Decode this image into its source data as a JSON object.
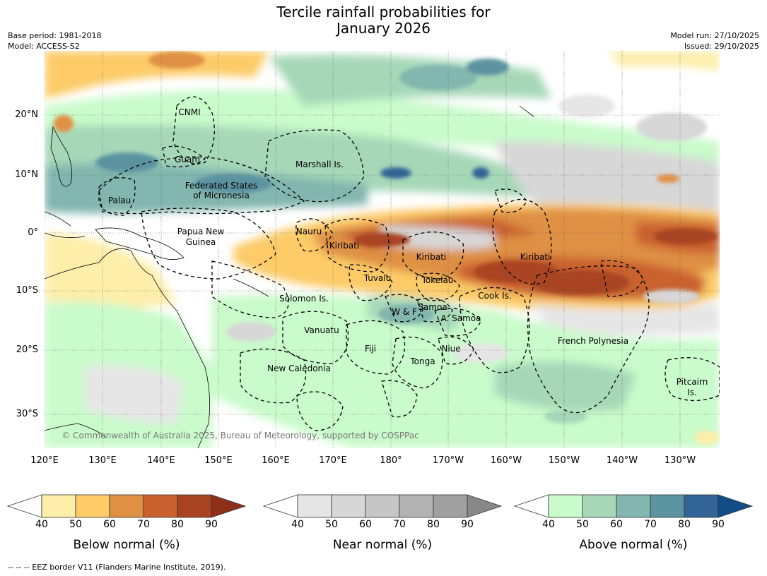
{
  "title": {
    "line1": "Tercile rainfall probabilities for",
    "line2": "January 2026"
  },
  "meta": {
    "base_period": "Base period: 1981-2018",
    "model": "Model: ACCESS-S2",
    "model_run": "Model run: 27/10/2025",
    "issued": "Issued: 29/10/2025"
  },
  "axes": {
    "lat_ticks": [
      "20°N",
      "10°N",
      "0°",
      "10°S",
      "20°S",
      "30°S"
    ],
    "lon_ticks": [
      "120°E",
      "130°E",
      "140°E",
      "150°E",
      "160°E",
      "170°E",
      "180°",
      "170°W",
      "160°W",
      "150°W",
      "140°W",
      "130°W"
    ]
  },
  "regions": [
    {
      "name": "CNMI"
    },
    {
      "name": "Guam"
    },
    {
      "name": "Marshall Is."
    },
    {
      "name": "Federated States"
    },
    {
      "name": "of Micronesia"
    },
    {
      "name": "Palau"
    },
    {
      "name": "Nauru"
    },
    {
      "name": "Papua New"
    },
    {
      "name": "Guinea"
    },
    {
      "name": "Kiribati"
    },
    {
      "name": "Kiribati"
    },
    {
      "name": "Kiribati"
    },
    {
      "name": "Tuvalu"
    },
    {
      "name": "Tokelau"
    },
    {
      "name": "Cook Is."
    },
    {
      "name": "Solomon Is."
    },
    {
      "name": "W & F"
    },
    {
      "name": "Samoa"
    },
    {
      "name": "A. Samoa"
    },
    {
      "name": "Vanuatu"
    },
    {
      "name": "Fiji"
    },
    {
      "name": "Niue"
    },
    {
      "name": "French Polynesia"
    },
    {
      "name": "Tonga"
    },
    {
      "name": "New Caledonia"
    },
    {
      "name": "Pitcairn"
    },
    {
      "name": "Is."
    }
  ],
  "credit": "© Commonwealth of Australia 2025, Bureau of Meteorology, supported by COSPPac",
  "colorbars": [
    {
      "title": "Below normal (%)",
      "ticks": [
        "40",
        "50",
        "60",
        "70",
        "80",
        "90"
      ],
      "colors": [
        "#fdeeaa",
        "#fdcb68",
        "#df9045",
        "#c9622f",
        "#a94423",
        "#8e2f1a"
      ]
    },
    {
      "title": "Near normal (%)",
      "ticks": [
        "40",
        "50",
        "60",
        "70",
        "80",
        "90"
      ],
      "colors": [
        "#e6e6e6",
        "#d7d7d7",
        "#c6c6c6",
        "#b3b3b3",
        "#a0a0a0",
        "#888888"
      ]
    },
    {
      "title": "Above normal (%)",
      "ticks": [
        "40",
        "50",
        "60",
        "70",
        "80",
        "90"
      ],
      "colors": [
        "#c9fbcb",
        "#a6d8b8",
        "#82b6ae",
        "#5b93a1",
        "#326497",
        "#134d87"
      ]
    }
  ],
  "footer": "--  --  -- EEZ border V11 (Flanders Marine Institute, 2019).",
  "colors": {
    "land_outline": "#000000",
    "grid": "#555555"
  }
}
